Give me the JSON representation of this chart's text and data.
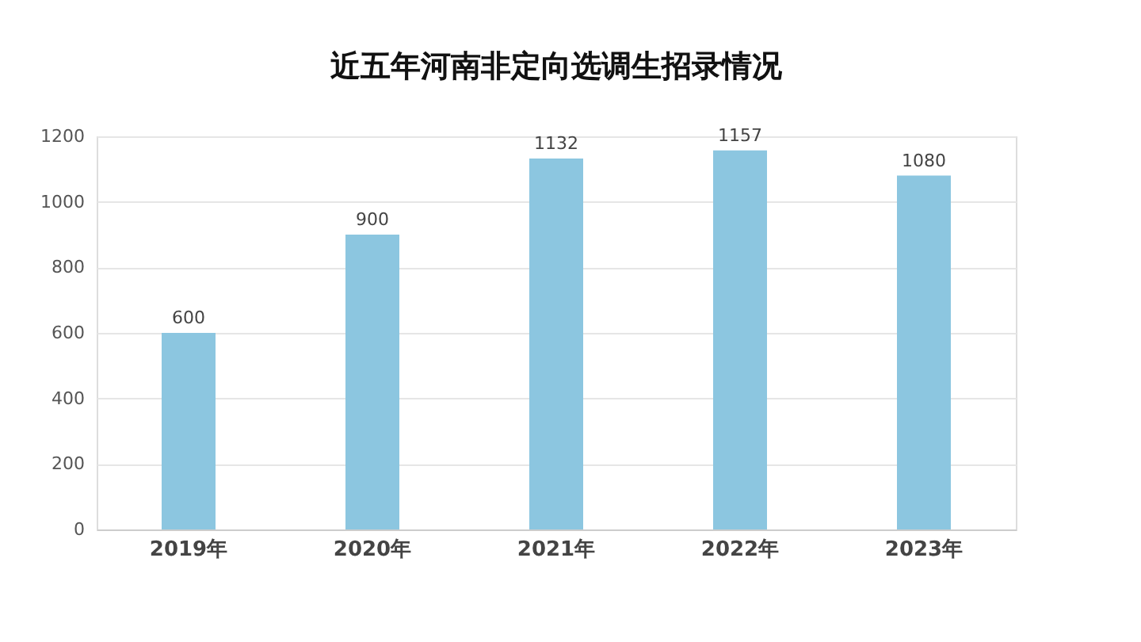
{
  "chart_data": {
    "type": "bar",
    "title": "近五年河南非定向选调生招录情况",
    "categories": [
      "2019年",
      "2020年",
      "2021年",
      "2022年",
      "2023年"
    ],
    "values": [
      600,
      900,
      1132,
      1157,
      1080
    ],
    "color": "#8cc6e0",
    "ylim": [
      0,
      1200
    ],
    "yticks": [
      0,
      200,
      400,
      600,
      800,
      1000,
      1200
    ],
    "grid": "y",
    "data_labels": true
  }
}
